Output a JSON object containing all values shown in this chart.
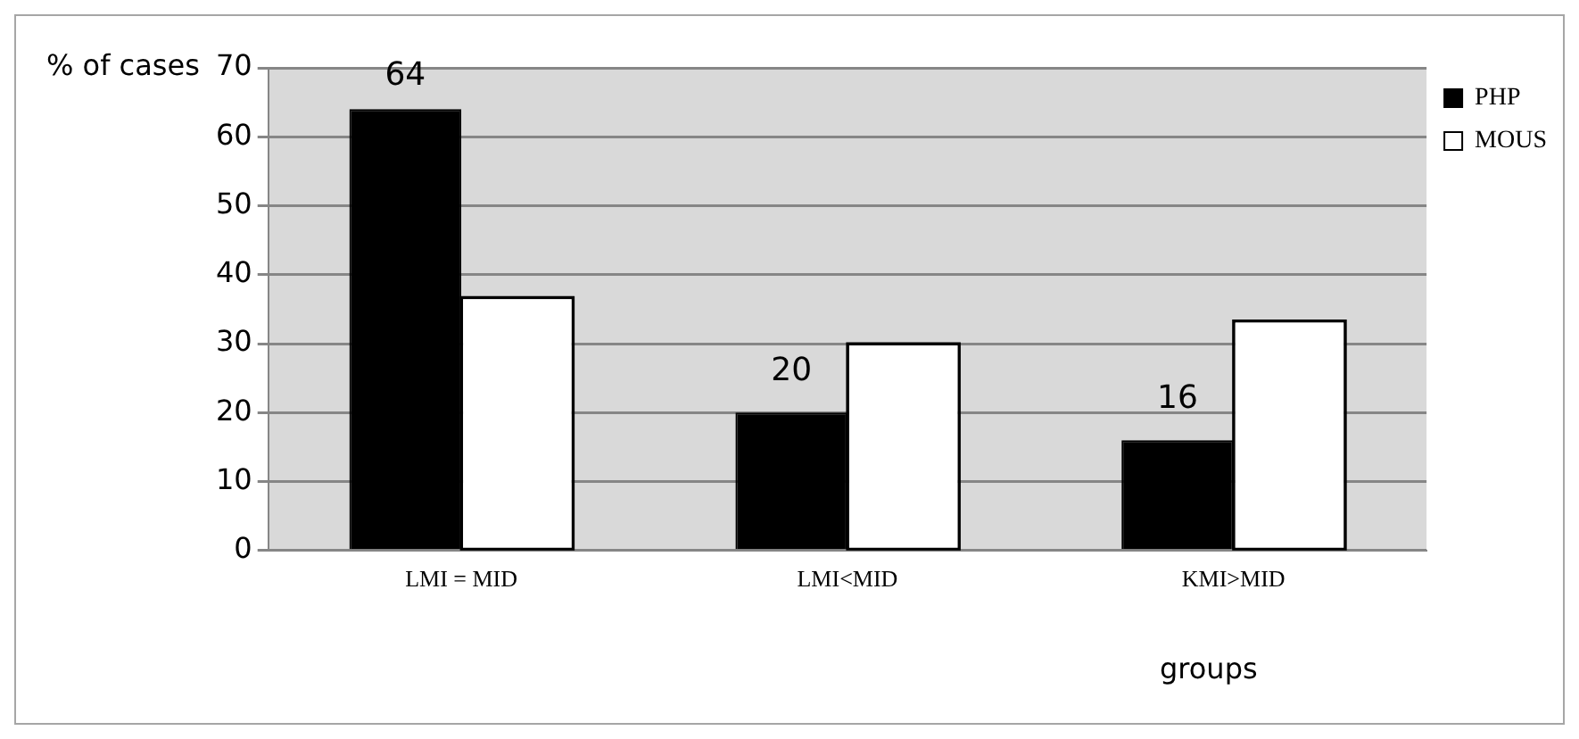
{
  "chart_data": {
    "type": "bar",
    "categories": [
      "LMI = MID",
      "LMI<MID",
      "KMI>MID"
    ],
    "series": [
      {
        "name": "PHP",
        "color": "#000000",
        "values": [
          64,
          20,
          16
        ],
        "value_labels": [
          "64",
          "20",
          "16"
        ]
      },
      {
        "name": "MOUS",
        "color": "#ffffff",
        "values": [
          36.7,
          30,
          33.3
        ]
      }
    ],
    "xlabel": "groups",
    "ylabel": "% of cases",
    "ylim": [
      0,
      70
    ],
    "yticks": [
      0,
      10,
      20,
      30,
      40,
      50,
      60,
      70
    ],
    "grid": "y",
    "legend": "right"
  }
}
